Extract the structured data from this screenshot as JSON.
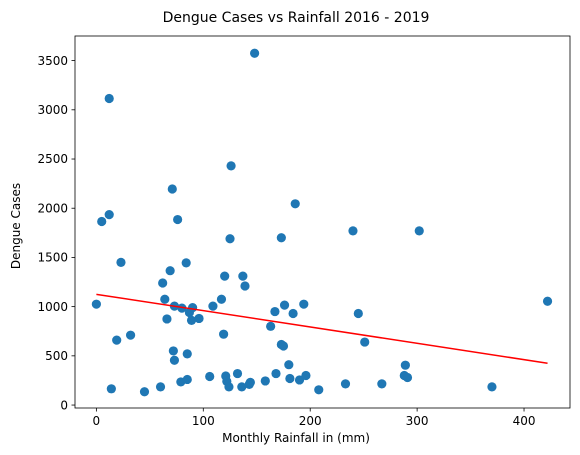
{
  "chart_data": {
    "type": "scatter",
    "title": "Dengue Cases vs Rainfall 2016 - 2019",
    "xlabel": "Monthly Rainfall in (mm)",
    "ylabel": "Dengue Cases",
    "xlim": [
      -20,
      443
    ],
    "ylim": [
      -30,
      3750
    ],
    "xticks": [
      0,
      100,
      200,
      300,
      400
    ],
    "yticks": [
      0,
      500,
      1000,
      1500,
      2000,
      2500,
      3000,
      3500
    ],
    "grid": false,
    "colors": {
      "points": "#1f77b4",
      "trend": "#ff0000"
    },
    "points": [
      [
        0,
        1025
      ],
      [
        5,
        1865
      ],
      [
        12,
        1935
      ],
      [
        12,
        3115
      ],
      [
        14,
        165
      ],
      [
        19,
        660
      ],
      [
        23,
        1450
      ],
      [
        32,
        710
      ],
      [
        45,
        135
      ],
      [
        60,
        185
      ],
      [
        62,
        1240
      ],
      [
        64,
        1075
      ],
      [
        66,
        875
      ],
      [
        69,
        1365
      ],
      [
        71,
        2195
      ],
      [
        72,
        550
      ],
      [
        73,
        455
      ],
      [
        73,
        1005
      ],
      [
        76,
        1885
      ],
      [
        79,
        235
      ],
      [
        80,
        985
      ],
      [
        84,
        1445
      ],
      [
        85,
        260
      ],
      [
        85,
        520
      ],
      [
        87,
        940
      ],
      [
        89,
        860
      ],
      [
        90,
        990
      ],
      [
        96,
        880
      ],
      [
        106,
        290
      ],
      [
        109,
        1005
      ],
      [
        117,
        1075
      ],
      [
        119,
        720
      ],
      [
        120,
        1310
      ],
      [
        121,
        295
      ],
      [
        122,
        240
      ],
      [
        124,
        185
      ],
      [
        125,
        1690
      ],
      [
        126,
        2430
      ],
      [
        132,
        320
      ],
      [
        136,
        185
      ],
      [
        137,
        1310
      ],
      [
        139,
        1210
      ],
      [
        143,
        210
      ],
      [
        144,
        230
      ],
      [
        148,
        3575
      ],
      [
        158,
        245
      ],
      [
        163,
        800
      ],
      [
        167,
        950
      ],
      [
        168,
        320
      ],
      [
        173,
        1700
      ],
      [
        173,
        615
      ],
      [
        175,
        600
      ],
      [
        176,
        1015
      ],
      [
        180,
        410
      ],
      [
        181,
        270
      ],
      [
        184,
        930
      ],
      [
        186,
        2045
      ],
      [
        190,
        255
      ],
      [
        194,
        1025
      ],
      [
        196,
        300
      ],
      [
        208,
        155
      ],
      [
        233,
        215
      ],
      [
        240,
        1770
      ],
      [
        245,
        930
      ],
      [
        251,
        640
      ],
      [
        267,
        215
      ],
      [
        288,
        300
      ],
      [
        289,
        405
      ],
      [
        291,
        280
      ],
      [
        302,
        1770
      ],
      [
        370,
        185
      ],
      [
        422,
        1055
      ]
    ],
    "trendline": {
      "x": [
        0,
        422
      ],
      "y": [
        1125,
        425
      ]
    }
  }
}
